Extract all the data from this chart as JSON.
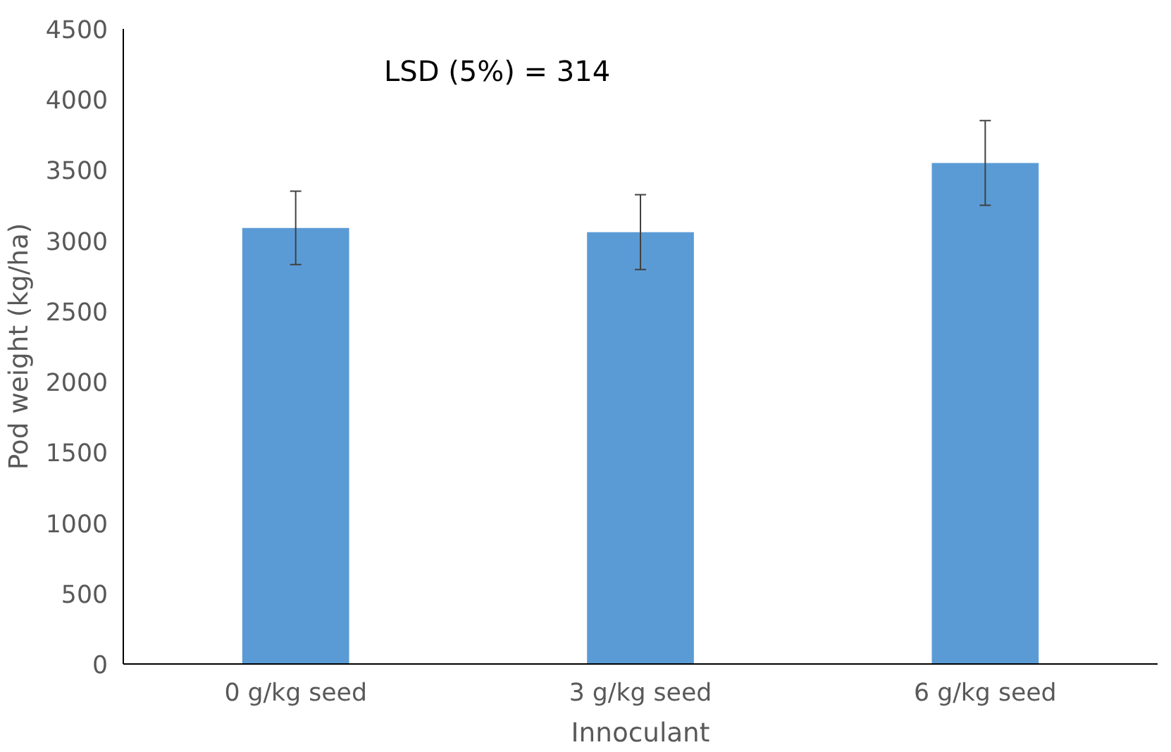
{
  "chart_data": {
    "type": "bar",
    "xlabel": "Innoculant",
    "ylabel": "Pod weight (kg/ha)",
    "categories": [
      "0 g/kg seed",
      "3 g/kg seed",
      "6 g/kg seed"
    ],
    "values": [
      3090,
      3060,
      3550
    ],
    "errors": [
      260,
      265,
      300
    ],
    "color": "#5b9bd5",
    "ylim": [
      0,
      4500
    ],
    "yticks": [
      0,
      500,
      1000,
      1500,
      2000,
      2500,
      3000,
      3500,
      4000,
      4500
    ],
    "grid": false,
    "annotations": [
      "LSD (5%) = 314"
    ]
  }
}
